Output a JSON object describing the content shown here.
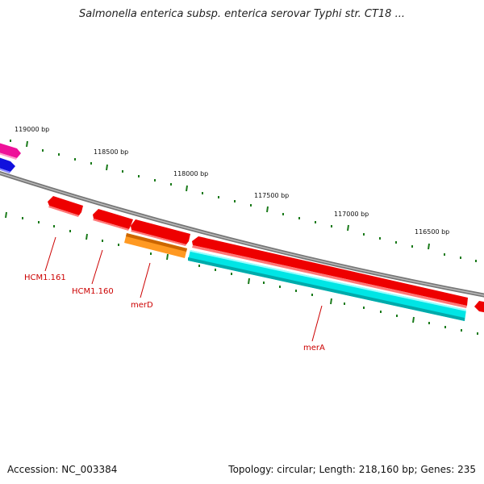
{
  "title": "Salmonella enterica subsp. enterica serovar Typhi str. CT18 ...",
  "footer": {
    "accession": "Accession: NC_003384",
    "summary": "Topology: circular; Length: 218,160 bp; Genes: 235"
  },
  "scale": {
    "labels": [
      "119000 bp",
      "118500 bp",
      "118000 bp",
      "117500 bp",
      "117000 bp",
      "116500 bp"
    ]
  },
  "genes": {
    "labels": [
      "HCM1.161",
      "HCM1.160",
      "merD",
      "merA"
    ]
  },
  "colors": {
    "backbone": "#777777",
    "gene_red": "#ee0000",
    "gene_orange": "#ff9922",
    "gene_cyan": "#00e5e5",
    "gene_blue": "#1111dd",
    "gene_pink": "#ee1199",
    "tick_green": "#1a7a1a",
    "label_red": "#cc0000"
  }
}
